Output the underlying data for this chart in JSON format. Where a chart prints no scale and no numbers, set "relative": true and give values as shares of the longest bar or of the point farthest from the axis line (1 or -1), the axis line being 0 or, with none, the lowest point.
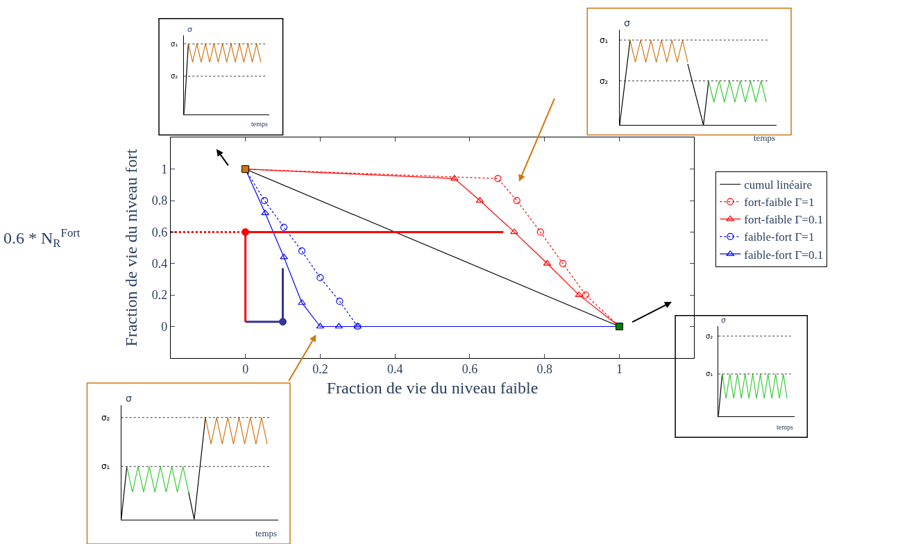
{
  "chart_data": [
    {
      "type": "line",
      "xlabel": "Fraction de vie du niveau faible",
      "ylabel": "Fraction de vie du niveau fort",
      "xlim": [
        -0.2,
        1.2
      ],
      "ylim": [
        -0.2,
        1.2
      ],
      "xticks": [
        0,
        0.2,
        0.4,
        0.6,
        0.8,
        1
      ],
      "yticks": [
        0,
        0.2,
        0.4,
        0.6,
        0.8,
        1
      ],
      "grid": false,
      "legend": "right",
      "annotations": [
        "0.6 * N$_{R}$$^{Fort}$"
      ],
      "series": [
        {
          "name": "cumul linéaire",
          "color": "#000000",
          "x": [
            0,
            1
          ],
          "values": [
            1,
            0
          ],
          "marker": "none",
          "line_style": "solid"
        },
        {
          "name": "fort-faible Γ=1",
          "color": "#ff0000",
          "x": [
            0,
            0.675,
            0.726,
            0.789,
            0.849,
            0.91,
            1
          ],
          "values": [
            1,
            0.94,
            0.8,
            0.6,
            0.4,
            0.2,
            0
          ],
          "marker": "circle",
          "line_style": "dotted"
        },
        {
          "name": "fort-faible Γ=0.1",
          "color": "#ff0000",
          "x": [
            0,
            0.559,
            0.627,
            0.719,
            0.807,
            0.892,
            1
          ],
          "values": [
            1,
            0.94,
            0.8,
            0.6,
            0.4,
            0.2,
            0
          ],
          "marker": "triangle",
          "line_style": "solid"
        },
        {
          "name": "faible-fort Γ=1",
          "color": "#0000ff",
          "x": [
            0,
            0.051,
            0.103,
            0.151,
            0.2,
            0.252,
            0.3,
            1
          ],
          "values": [
            1,
            0.8,
            0.63,
            0.48,
            0.31,
            0.16,
            0,
            0
          ],
          "marker": "circle",
          "line_style": "dotted"
        },
        {
          "name": "faible-fort Γ=0.1",
          "color": "#0000ff",
          "x": [
            0,
            0.053,
            0.103,
            0.151,
            0.2,
            0.25,
            0.3,
            1
          ],
          "values": [
            1,
            0.72,
            0.44,
            0.15,
            0,
            0,
            0,
            0
          ],
          "marker": "triangle",
          "line_style": "solid"
        },
        {
          "color": "#ff0000",
          "x": [
            -0.2,
            0
          ],
          "values": [
            0.6,
            0.6
          ],
          "marker": "none",
          "line_style": "dotted"
        },
        {
          "color": "#ff0000",
          "x": [
            0,
            0,
            0.69
          ],
          "values": [
            0.03,
            0.6,
            0.6
          ],
          "marker": "none",
          "line_style": "solid"
        },
        {
          "color": "#333399",
          "x": [
            0,
            0.1,
            0.1
          ],
          "values": [
            0.03,
            0.03,
            0.37
          ],
          "marker": "none",
          "line_style": "solid"
        },
        {
          "type": "scatter",
          "color": "#ff0000",
          "x": [
            0
          ],
          "values": [
            0.6
          ],
          "marker": "circle"
        },
        {
          "type": "scatter",
          "color": "#333399",
          "x": [
            0.1
          ],
          "values": [
            0.03
          ],
          "marker": "circle"
        },
        {
          "type": "scatter",
          "color": "#d2750f",
          "x": [
            0
          ],
          "values": [
            1
          ],
          "marker": "square"
        },
        {
          "type": "scatter",
          "color": "#008000",
          "x": [
            1
          ],
          "values": [
            0
          ],
          "marker": "square"
        }
      ]
    },
    {
      "type": "line",
      "relative": true,
      "ylabel": "σ",
      "xlabel": "temps",
      "grid": false,
      "categories": [
        null,
        null,
        null,
        null,
        null,
        null,
        null,
        null,
        null,
        null,
        null,
        null,
        null,
        null,
        null,
        null,
        null,
        null,
        null
      ],
      "ref_lines": [
        {
          "axis": "y",
          "value": 1,
          "label": "σ₁",
          "color": "#000000",
          "line_style": "dotted"
        },
        {
          "axis": "y",
          "value": 0.54,
          "label": "σ₂",
          "color": "#000000",
          "line_style": "dotted"
        }
      ],
      "series": [
        {
          "color": "#000000",
          "values": [
            0,
            1,
            null,
            null,
            null,
            null,
            null,
            null,
            null,
            null,
            null,
            null,
            null,
            null,
            null,
            null,
            null,
            null,
            null
          ]
        },
        {
          "color": "#d2750f",
          "values": [
            null,
            1,
            0.74,
            1,
            0.74,
            1,
            0.74,
            1,
            0.74,
            1,
            0.74,
            1,
            0.74,
            1,
            0.74,
            1,
            0.74,
            1,
            0.74
          ]
        }
      ]
    },
    {
      "type": "line",
      "relative": true,
      "ylabel": "σ",
      "xlabel": "temps",
      "grid": false,
      "categories": [
        null,
        null,
        null,
        null,
        null,
        null,
        null,
        null,
        null,
        null,
        null,
        null,
        null,
        null,
        null,
        null,
        null,
        null,
        null,
        null,
        null,
        null,
        null,
        null,
        null,
        null,
        null,
        null,
        null
      ],
      "ref_lines": [
        {
          "axis": "y",
          "value": 1,
          "label": "σ₁",
          "color": "#000000",
          "line_style": "dotted"
        },
        {
          "axis": "y",
          "value": 0.52,
          "label": "σ₂",
          "color": "#000000",
          "line_style": "dotted"
        }
      ],
      "series": [
        {
          "color": "#000000",
          "values": [
            0,
            0.5,
            1,
            null,
            null,
            null,
            null,
            null,
            null,
            null,
            null,
            null,
            null,
            0.72,
            0.48,
            0.24,
            0,
            0.52,
            null,
            null,
            null,
            null,
            null,
            null,
            null,
            null,
            null,
            null,
            null
          ]
        },
        {
          "color": "#d2750f",
          "values": [
            null,
            null,
            1,
            0.74,
            1,
            0.74,
            1,
            0.74,
            1,
            0.74,
            1,
            0.74,
            1,
            0.74,
            null,
            null,
            null,
            null,
            null,
            null,
            null,
            null,
            null,
            null,
            null,
            null,
            null,
            null,
            null
          ]
        },
        {
          "color": "#33cc33",
          "values": [
            null,
            null,
            null,
            null,
            null,
            null,
            null,
            null,
            null,
            null,
            null,
            null,
            null,
            null,
            null,
            null,
            null,
            0.52,
            0.27,
            0.52,
            0.27,
            0.52,
            0.27,
            0.52,
            0.27,
            0.52,
            0.27,
            0.52,
            0.27
          ]
        }
      ]
    },
    {
      "type": "line",
      "relative": true,
      "ylabel": "σ",
      "xlabel": "temps",
      "grid": false,
      "categories": [
        null,
        null,
        null,
        null,
        null,
        null,
        null,
        null,
        null,
        null,
        null,
        null,
        null,
        null,
        null,
        null,
        null,
        null,
        null
      ],
      "ref_lines": [
        {
          "axis": "y",
          "value": 1.9,
          "label": "σ₂",
          "color": "#000000",
          "line_style": "dotted"
        },
        {
          "axis": "y",
          "value": 1,
          "label": "σ₁",
          "color": "#000000",
          "line_style": "dotted"
        }
      ],
      "series": [
        {
          "color": "#000000",
          "values": [
            0,
            1,
            null,
            null,
            null,
            null,
            null,
            null,
            null,
            null,
            null,
            null,
            null,
            null,
            null,
            null,
            null,
            null,
            null
          ]
        },
        {
          "color": "#33cc33",
          "values": [
            null,
            1,
            0.42,
            1,
            0.42,
            1,
            0.42,
            1,
            0.42,
            1,
            0.42,
            1,
            0.42,
            1,
            0.42,
            1,
            0.42,
            1,
            0.42
          ]
        }
      ]
    },
    {
      "type": "line",
      "relative": true,
      "ylabel": "σ",
      "xlabel": "temps",
      "grid": false,
      "categories": [
        null,
        null,
        null,
        null,
        null,
        null,
        null,
        null,
        null,
        null,
        null,
        null,
        null,
        null,
        null,
        null,
        null,
        null,
        null,
        null,
        null,
        null,
        null,
        null,
        null,
        null,
        null
      ],
      "ref_lines": [
        {
          "axis": "y",
          "value": 1,
          "label": "σ₂",
          "color": "#000000",
          "line_style": "dotted"
        },
        {
          "axis": "y",
          "value": 0.52,
          "label": "σ₁",
          "color": "#000000",
          "line_style": "dotted"
        }
      ],
      "series": [
        {
          "color": "#000000",
          "values": [
            0,
            0.52,
            null,
            null,
            null,
            null,
            null,
            null,
            null,
            null,
            null,
            null,
            0.27,
            0,
            0.5,
            1,
            null,
            null,
            null,
            null,
            null,
            null,
            null,
            null,
            null,
            null,
            null
          ]
        },
        {
          "color": "#33cc33",
          "values": [
            null,
            0.52,
            0.27,
            0.52,
            0.27,
            0.52,
            0.27,
            0.52,
            0.27,
            0.52,
            0.27,
            0.52,
            0.27,
            null,
            null,
            null,
            null,
            null,
            null,
            null,
            null,
            null,
            null,
            null,
            null,
            null,
            null
          ]
        },
        {
          "color": "#d2750f",
          "values": [
            null,
            null,
            null,
            null,
            null,
            null,
            null,
            null,
            null,
            null,
            null,
            null,
            null,
            null,
            null,
            1,
            0.74,
            1,
            0.74,
            1,
            0.74,
            1,
            0.74,
            1,
            0.74,
            1,
            0.74
          ]
        }
      ]
    }
  ]
}
